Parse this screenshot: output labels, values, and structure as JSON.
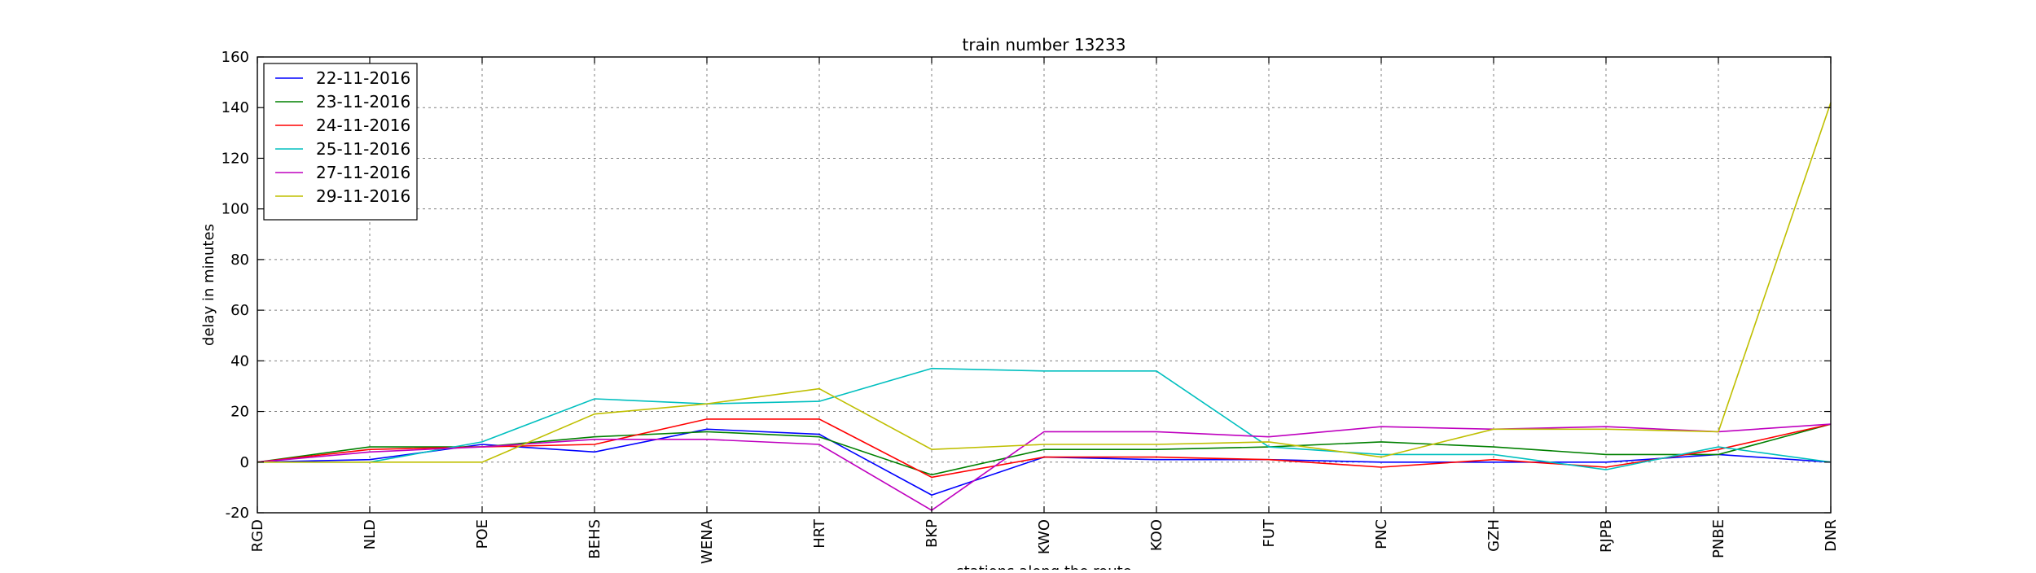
{
  "chart_data": {
    "type": "line",
    "title": "train number 13233",
    "xlabel": "stations along the route",
    "ylabel": "delay in minutes",
    "categories": [
      "RGD",
      "NLD",
      "POE",
      "BEHS",
      "WENA",
      "HRT",
      "BKP",
      "KWO",
      "KOO",
      "FUT",
      "PNC",
      "GZH",
      "RJPB",
      "PNBE",
      "DNR"
    ],
    "ylim": [
      -20,
      160
    ],
    "yticks": [
      -20,
      0,
      20,
      40,
      60,
      80,
      100,
      120,
      140,
      160
    ],
    "grid": true,
    "legend_position": "top-left",
    "series": [
      {
        "name": "22-11-2016",
        "color": "#0000ff",
        "values": [
          0,
          1,
          7,
          4,
          13,
          11,
          -13,
          2,
          1,
          1,
          0,
          0,
          0,
          3,
          0
        ]
      },
      {
        "name": "23-11-2016",
        "color": "#008000",
        "values": [
          0,
          6,
          6,
          10,
          12,
          10,
          -5,
          5,
          5,
          6,
          8,
          6,
          3,
          3,
          15
        ]
      },
      {
        "name": "24-11-2016",
        "color": "#ff0000",
        "values": [
          0,
          5,
          6,
          7,
          17,
          17,
          -6,
          2,
          2,
          1,
          -2,
          1,
          -2,
          5,
          15
        ]
      },
      {
        "name": "25-11-2016",
        "color": "#00bfbf",
        "values": [
          0,
          0,
          8,
          25,
          23,
          24,
          37,
          36,
          36,
          6,
          3,
          3,
          -3,
          6,
          0
        ]
      },
      {
        "name": "27-11-2016",
        "color": "#bf00bf",
        "values": [
          0,
          4,
          6,
          9,
          9,
          7,
          -19,
          12,
          12,
          10,
          14,
          13,
          14,
          12,
          15
        ]
      },
      {
        "name": "29-11-2016",
        "color": "#bfbf00",
        "values": [
          0,
          0,
          0,
          19,
          23,
          29,
          5,
          7,
          7,
          8,
          2,
          13,
          13,
          12,
          142
        ]
      }
    ]
  }
}
